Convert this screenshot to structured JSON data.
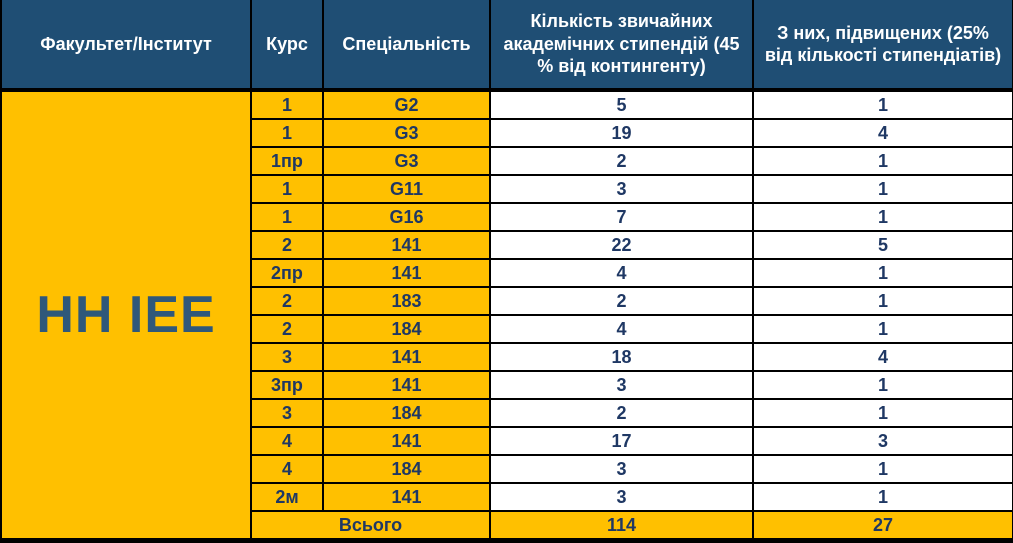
{
  "colors": {
    "header_bg": "#1F4E74",
    "header_text": "#FFFFFF",
    "cell_yellow": "#FFC000",
    "value_text": "#1F3864",
    "faculty_text": "#2F587A",
    "border": "#000000"
  },
  "table": {
    "headers": {
      "faculty": "Факультет/Інститут",
      "course": "Курс",
      "specialty": "Спеціальність",
      "regular": "Кількість звичайних академічних стипендій (45 % від контингенту)",
      "increased": "З них, підвищених (25% від кількості стипендіатів)"
    },
    "faculty_name": "НН ІЕЕ",
    "rows": [
      {
        "course": "1",
        "specialty": "G2",
        "regular": "5",
        "increased": "1"
      },
      {
        "course": "1",
        "specialty": "G3",
        "regular": "19",
        "increased": "4"
      },
      {
        "course": "1пр",
        "specialty": "G3",
        "regular": "2",
        "increased": "1"
      },
      {
        "course": "1",
        "specialty": "G11",
        "regular": "3",
        "increased": "1"
      },
      {
        "course": "1",
        "specialty": "G16",
        "regular": "7",
        "increased": "1"
      },
      {
        "course": "2",
        "specialty": "141",
        "regular": "22",
        "increased": "5"
      },
      {
        "course": "2пр",
        "specialty": "141",
        "regular": "4",
        "increased": "1"
      },
      {
        "course": "2",
        "specialty": "183",
        "regular": "2",
        "increased": "1"
      },
      {
        "course": "2",
        "specialty": "184",
        "regular": "4",
        "increased": "1"
      },
      {
        "course": "3",
        "specialty": "141",
        "regular": "18",
        "increased": "4"
      },
      {
        "course": "3пр",
        "specialty": "141",
        "regular": "3",
        "increased": "1"
      },
      {
        "course": "3",
        "specialty": "184",
        "regular": "2",
        "increased": "1"
      },
      {
        "course": "4",
        "specialty": "141",
        "regular": "17",
        "increased": "3"
      },
      {
        "course": "4",
        "specialty": "184",
        "regular": "3",
        "increased": "1"
      },
      {
        "course": "2м",
        "specialty": "141",
        "regular": "3",
        "increased": "1"
      }
    ],
    "total": {
      "label": "Всього",
      "regular": "114",
      "increased": "27"
    }
  }
}
